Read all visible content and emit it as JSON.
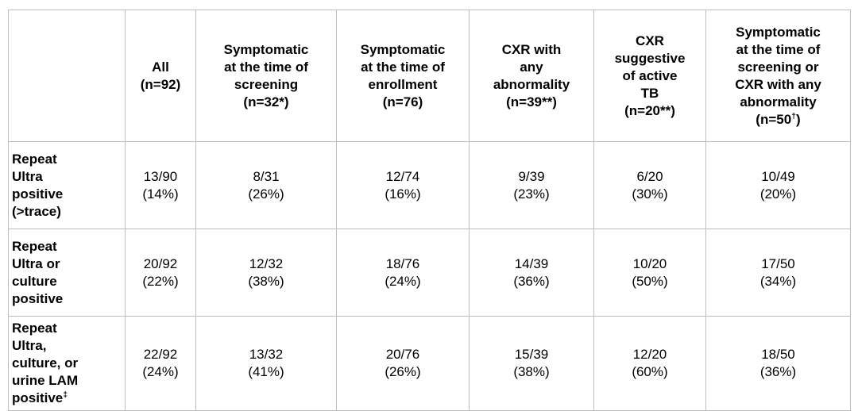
{
  "table": {
    "columns": [
      {
        "id": "row-category",
        "label": ""
      },
      {
        "id": "all",
        "label": "All\n(n=92)"
      },
      {
        "id": "symptomatic-screening",
        "label": "Symptomatic\nat the time of\nscreening\n(n=32*)"
      },
      {
        "id": "symptomatic-enrollment",
        "label": "Symptomatic\nat the time of\nenrollment\n(n=76)"
      },
      {
        "id": "cxr-any-abnormality",
        "label": "CXR with\nany\nabnormality\n(n=39**)"
      },
      {
        "id": "cxr-active-tb",
        "label": "CXR\nsuggestive\nof active\nTB\n(n=20**)"
      },
      {
        "id": "symptomatic-or-cxr",
        "label": "Symptomatic\nat the time of\nscreening or\nCXR with any\nabnormality\n(n=50†)"
      }
    ],
    "rows": [
      {
        "label": "Repeat\nUltra\npositive\n(>trace)",
        "values": [
          "13/90\n(14%)",
          "8/31\n(26%)",
          "12/74\n(16%)",
          "9/39\n(23%)",
          "6/20\n(30%)",
          "10/49\n(20%)"
        ]
      },
      {
        "label": "Repeat\nUltra or\nculture\npositive",
        "values": [
          "20/92\n(22%)",
          "12/32\n(38%)",
          "18/76\n(24%)",
          "14/39\n(36%)",
          "10/20\n(50%)",
          "17/50\n(34%)"
        ]
      },
      {
        "label": "Repeat\nUltra,\nculture, or\nurine LAM\npositive‡",
        "values": [
          "22/92\n(24%)",
          "13/32\n(41%)",
          "20/76\n(26%)",
          "15/39\n(38%)",
          "12/20\n(60%)",
          "18/50\n(36%)"
        ]
      }
    ],
    "footnote_markers": [
      "*",
      "**",
      "†",
      "‡"
    ],
    "border_color": "#bdbdbd"
  }
}
